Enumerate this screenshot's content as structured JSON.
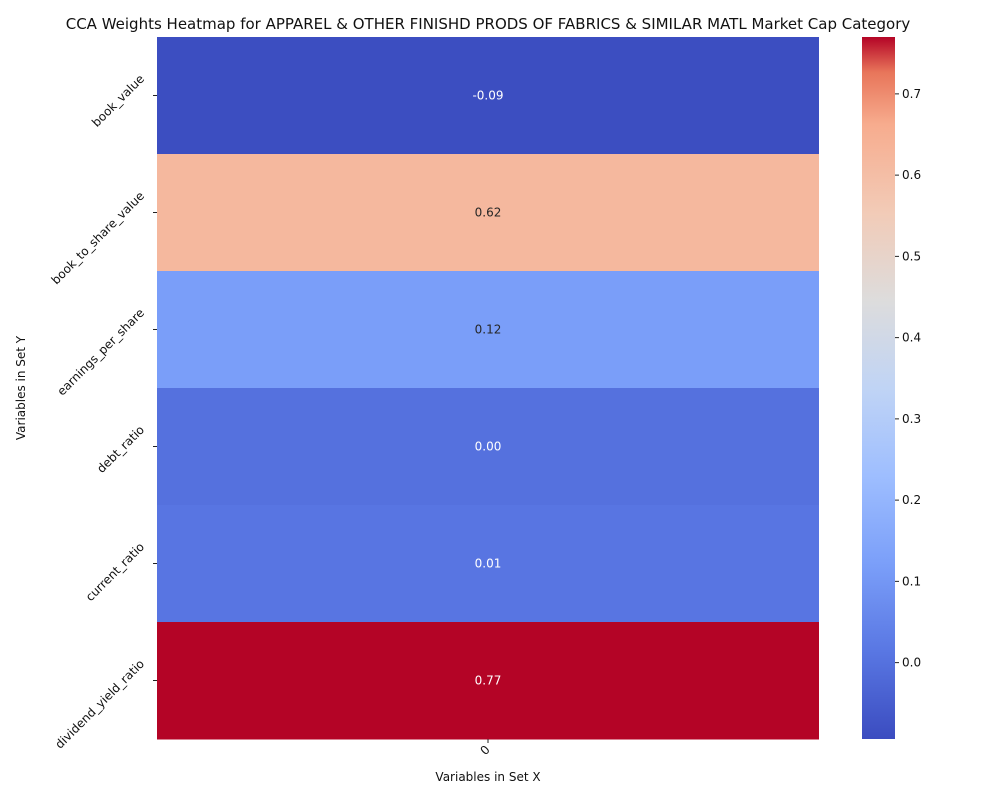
{
  "chart_data": {
    "type": "heatmap",
    "title": "CCA Weights Heatmap for APPAREL & OTHER FINISHD PRODS OF FABRICS & SIMILAR MATL Market Cap Category",
    "xlabel": "Variables in Set X",
    "ylabel": "Variables in Set Y",
    "x_categories": [
      "0"
    ],
    "y_categories": [
      "book_value",
      "book_to_share_value",
      "earnings_per_share",
      "debt_ratio",
      "current_ratio",
      "dividend_yield_ratio"
    ],
    "values": [
      [
        -0.09
      ],
      [
        0.62
      ],
      [
        0.12
      ],
      [
        0.0
      ],
      [
        0.01
      ],
      [
        0.77
      ]
    ],
    "value_labels": [
      "-0.09",
      "0.62",
      "0.12",
      "0.00",
      "0.01",
      "0.77"
    ],
    "colormap": "coolwarm",
    "colorbar": {
      "vmin": -0.094,
      "vmax": 0.77,
      "ticks": [
        0.0,
        0.1,
        0.2,
        0.3,
        0.4,
        0.5,
        0.6,
        0.7
      ],
      "tick_labels": [
        "0.0",
        "0.1",
        "0.2",
        "0.3",
        "0.4",
        "0.5",
        "0.6",
        "0.7"
      ]
    }
  }
}
